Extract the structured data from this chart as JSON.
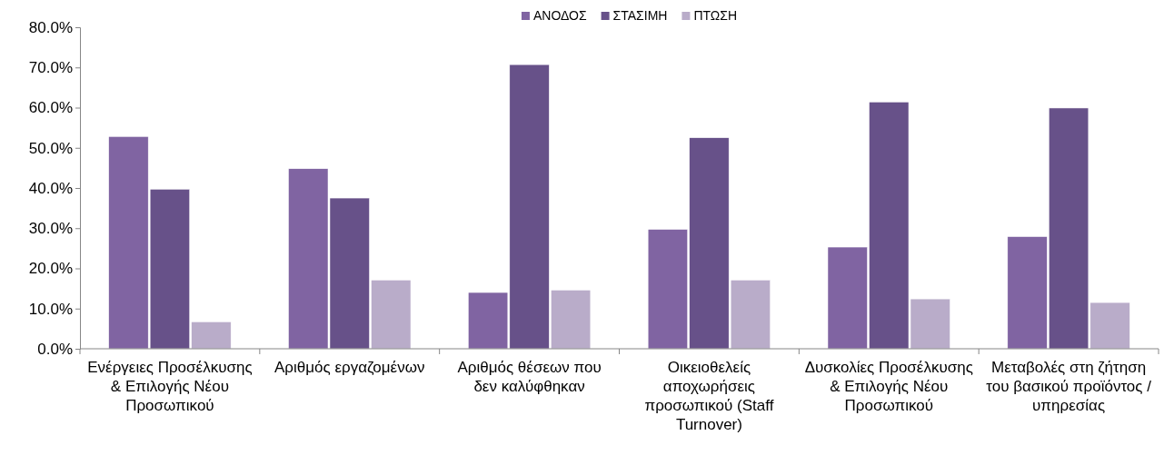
{
  "chart_data": {
    "type": "bar",
    "categories": [
      "Ενέργειες Προσέλκυσης & Επιλογής Νέου Προσωπικού",
      "Αριθμός εργαζομένων",
      "Αριθμός θέσεων που δεν καλύφθηκαν",
      "Οικειοθελείς αποχωρήσεις προσωπικού (Staff Turnover)",
      "Δυσκολίες Προσέλκυσης & Επιλογής Νέου Προσωπικού",
      "Μεταβολές στη ζήτηση του βασικού προϊόντος / υπηρεσίας"
    ],
    "series": [
      {
        "name": "ΑΝΟΔΟΣ",
        "color": "#8064a2",
        "values": [
          52.8,
          44.8,
          14.0,
          29.7,
          25.3,
          27.9
        ]
      },
      {
        "name": "ΣΤΑΣΙΜΗ",
        "color": "#675189",
        "values": [
          39.7,
          37.5,
          70.7,
          52.5,
          61.4,
          59.9
        ]
      },
      {
        "name": "ΠΤΩΣΗ",
        "color": "#b9acc9",
        "values": [
          6.7,
          17.1,
          14.6,
          17.1,
          12.4,
          11.5
        ]
      }
    ],
    "ylim": [
      0,
      80
    ],
    "yticks": [
      {
        "value": 0,
        "label": "0.0%"
      },
      {
        "value": 10,
        "label": "10.0%"
      },
      {
        "value": 20,
        "label": "20.0%"
      },
      {
        "value": 30,
        "label": "30.0%"
      },
      {
        "value": 40,
        "label": "40.0%"
      },
      {
        "value": 50,
        "label": "50.0%"
      },
      {
        "value": 60,
        "label": "60.0%"
      },
      {
        "value": 70,
        "label": "70.0%"
      },
      {
        "value": 80,
        "label": "80.0%"
      }
    ],
    "grid": false,
    "legend": "top"
  }
}
